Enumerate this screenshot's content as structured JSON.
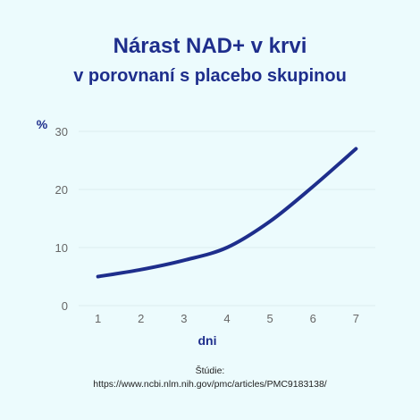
{
  "header": {
    "title_line1": "Nárast NAD+ v krvi",
    "title_line2": "v porovnaní s placebo skupinou"
  },
  "source": {
    "label": "Štúdie:",
    "url": "https://www.ncbi.nlm.nih.gov/pmc/articles/PMC9183138/"
  },
  "colors": {
    "background": "#ecfbfd",
    "line": "#1e2e8c",
    "title": "#1e2e8c",
    "grid": "#dbeef0",
    "tick": "#666666"
  },
  "chart_data": {
    "type": "line",
    "title": "Nárast NAD+ v krvi v porovnaní s placebo skupinou",
    "xlabel": "dni",
    "ylabel": "%",
    "x": [
      1,
      2,
      3,
      4,
      5,
      6,
      7
    ],
    "xticks": [
      "1",
      "2",
      "3",
      "4",
      "5",
      "6",
      "7"
    ],
    "yticks": [
      "0",
      "10",
      "20",
      "30"
    ],
    "series": [
      {
        "values": [
          5,
          6.2,
          7.8,
          10,
          14.5,
          20.5,
          27
        ]
      }
    ],
    "xlim": [
      0.55,
      7.45
    ],
    "ylim": [
      0,
      30
    ],
    "grid": true,
    "legend": "none"
  }
}
